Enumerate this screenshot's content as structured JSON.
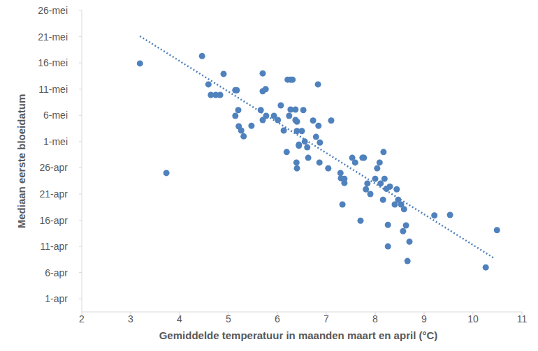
{
  "chart_data": {
    "type": "scatter",
    "x_label": "Gemiddelde temperatuur in maanden maart en april (°C)",
    "y_label": "Mediaan eerste bloeidatum",
    "xlim": [
      2,
      11
    ],
    "xticks": [
      2,
      3,
      4,
      5,
      6,
      7,
      8,
      9,
      10,
      11
    ],
    "ylim": [
      -1.5,
      56
    ],
    "yticks": [
      {
        "value": 1,
        "label": "1-apr"
      },
      {
        "value": 6,
        "label": "6-apr"
      },
      {
        "value": 11,
        "label": "11-apr"
      },
      {
        "value": 16,
        "label": "16-apr"
      },
      {
        "value": 21,
        "label": "21-apr"
      },
      {
        "value": 26,
        "label": "26-apr"
      },
      {
        "value": 31,
        "label": "1-mei"
      },
      {
        "value": 36,
        "label": "6-mei"
      },
      {
        "value": 41,
        "label": "11-mei"
      },
      {
        "value": 46,
        "label": "16-mei"
      },
      {
        "value": 51,
        "label": "21-mei"
      },
      {
        "value": 56,
        "label": "26-mei"
      }
    ],
    "grid": false,
    "series": [
      {
        "type": "scatter",
        "marker": "circle",
        "color": "#4f81bd",
        "x": [
          3.19,
          4.46,
          3.73,
          4.59,
          4.64,
          4.74,
          4.83,
          4.9,
          5.14,
          5.17,
          5.14,
          5.2,
          5.21,
          5.26,
          5.31,
          5.47,
          5.7,
          5.7,
          5.66,
          5.7,
          5.76,
          5.77,
          5.93,
          6.01,
          6.07,
          6.13,
          6.19,
          6.21,
          6.27,
          6.24,
          6.27,
          6.31,
          6.37,
          6.37,
          6.4,
          6.4,
          6.44,
          6.39,
          6.4,
          6.44,
          6.5,
          6.53,
          6.56,
          6.61,
          6.63,
          6.73,
          6.79,
          6.83,
          6.84,
          6.87,
          6.86,
          7.04,
          7.1,
          7.29,
          7.3,
          7.33,
          7.37,
          7.37,
          7.53,
          7.59,
          7.7,
          7.74,
          7.77,
          7.81,
          7.84,
          7.9,
          8.0,
          8.04,
          8.09,
          8.11,
          8.16,
          8.17,
          8.19,
          8.23,
          8.26,
          8.26,
          8.3,
          8.4,
          8.44,
          8.47,
          8.53,
          8.57,
          8.59,
          8.63,
          8.66,
          8.7,
          9.21,
          9.53,
          10.26,
          10.49
        ],
        "values": [
          45.9,
          47.3,
          25.0,
          41.9,
          39.9,
          39.9,
          39.9,
          43.9,
          40.8,
          40.8,
          35.9,
          37.0,
          33.9,
          33.1,
          32.0,
          34.0,
          44.0,
          40.6,
          37.0,
          35.1,
          41.0,
          35.9,
          35.9,
          35.1,
          37.9,
          33.1,
          29.0,
          42.8,
          42.8,
          35.9,
          37.1,
          42.8,
          35.1,
          37.1,
          33.0,
          34.8,
          30.2,
          27.0,
          25.9,
          30.4,
          33.0,
          37.0,
          31.0,
          29.9,
          27.9,
          35.0,
          31.9,
          41.9,
          34.0,
          30.8,
          27.0,
          25.9,
          35.0,
          25.0,
          24.0,
          19.0,
          23.9,
          23.1,
          27.9,
          27.0,
          15.9,
          27.9,
          27.9,
          21.9,
          23.0,
          21.0,
          23.9,
          25.9,
          27.0,
          23.0,
          19.9,
          29.0,
          23.9,
          22.0,
          15.1,
          11.0,
          22.4,
          19.0,
          21.9,
          19.9,
          19.0,
          13.9,
          18.1,
          15.0,
          8.2,
          11.9,
          16.9,
          17.0,
          7.0,
          14.1
        ]
      },
      {
        "type": "line",
        "line_style": "dotted",
        "color": "#4f81bd",
        "x": [
          3.19,
          10.44
        ],
        "values": [
          51.1,
          8.7
        ]
      }
    ]
  }
}
